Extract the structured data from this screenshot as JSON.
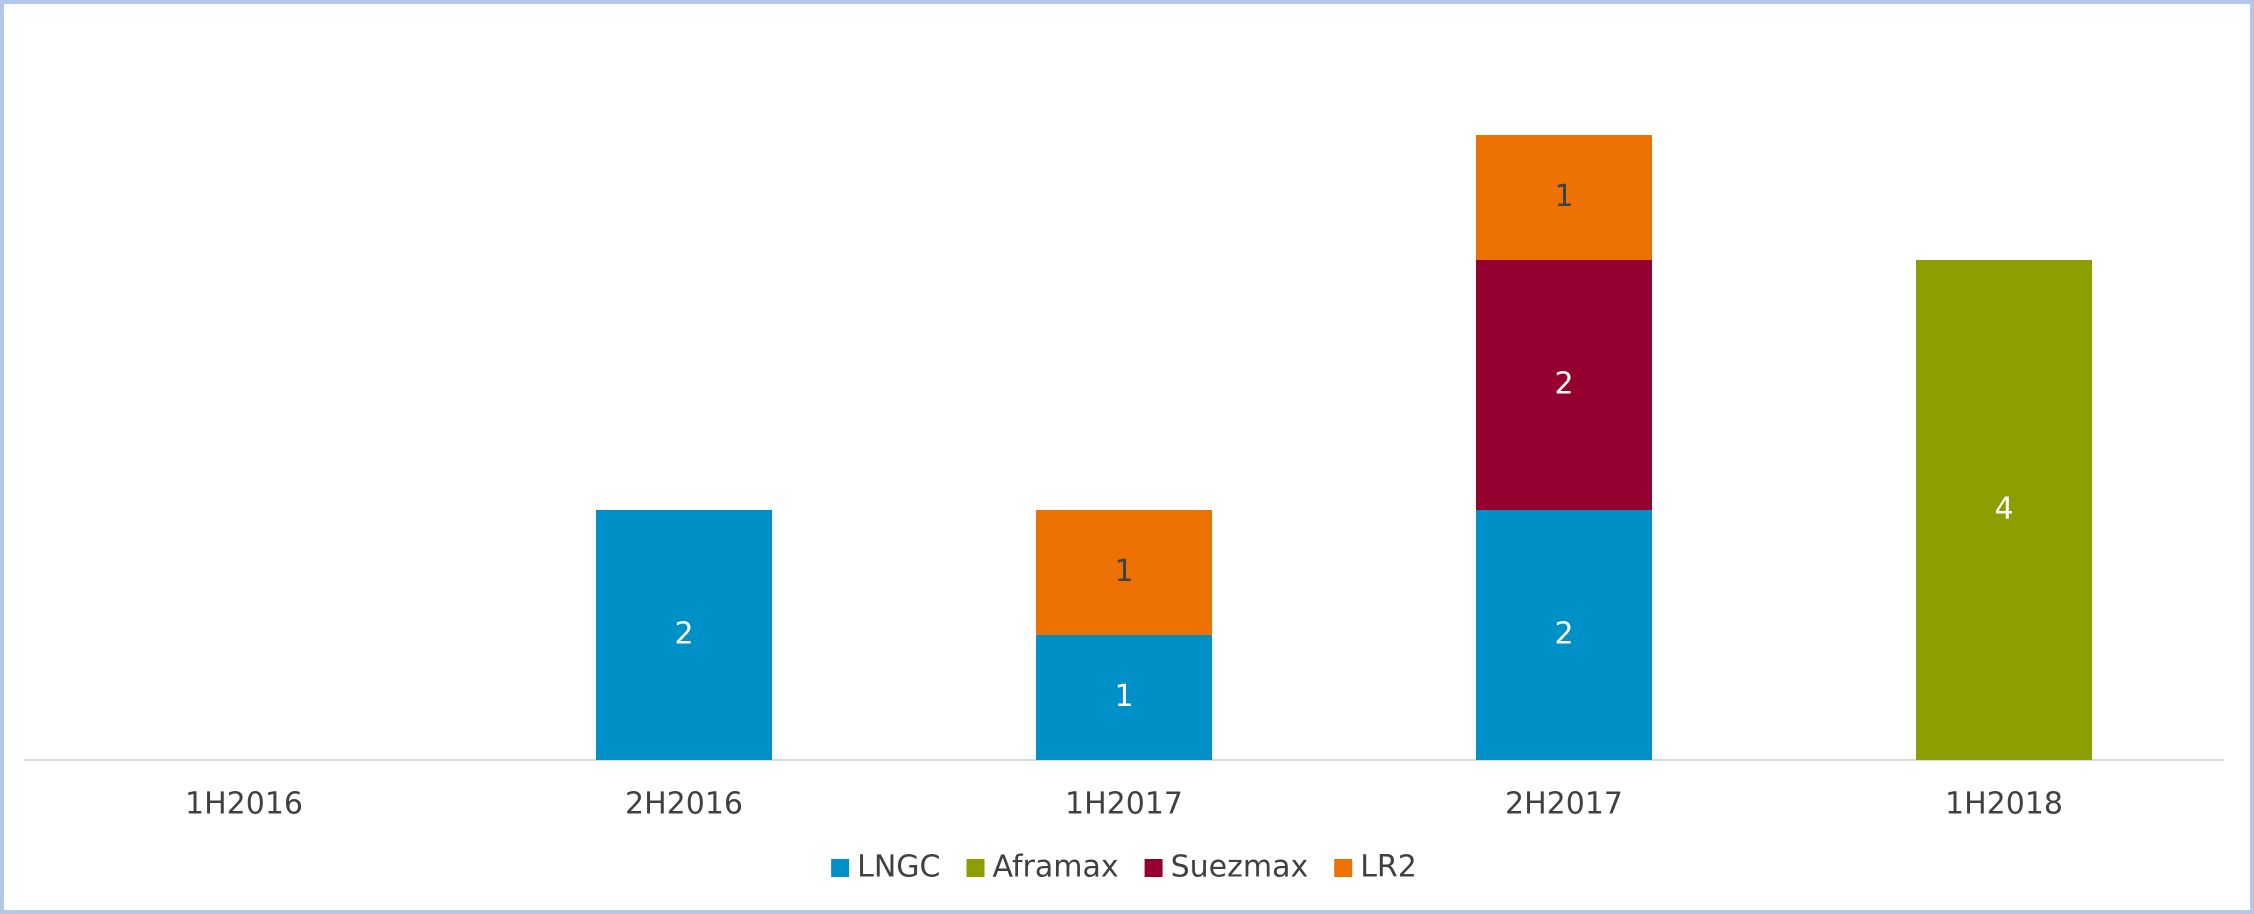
{
  "chart_data": {
    "type": "stacked_bar",
    "categories": [
      "1H2016",
      "2H2016",
      "1H2017",
      "2H2017",
      "1H2018"
    ],
    "series": [
      {
        "name": "LNGC",
        "color": "#0090c8",
        "label_color": "#ffffff",
        "values": [
          null,
          2,
          1,
          2,
          null
        ]
      },
      {
        "name": "Aframax",
        "color": "#8c9e00",
        "label_color": "#ffffff",
        "values": [
          null,
          null,
          null,
          null,
          4
        ]
      },
      {
        "name": "Suezmax",
        "color": "#960030",
        "label_color": "#ffffff",
        "values": [
          null,
          null,
          null,
          2,
          null
        ]
      },
      {
        "name": "LR2",
        "color": "#ee7203",
        "label_color": "#404040",
        "values": [
          null,
          null,
          1,
          1,
          null
        ]
      }
    ],
    "ylim": [
      0,
      6
    ],
    "legend": "bottom",
    "data_labels": true
  }
}
